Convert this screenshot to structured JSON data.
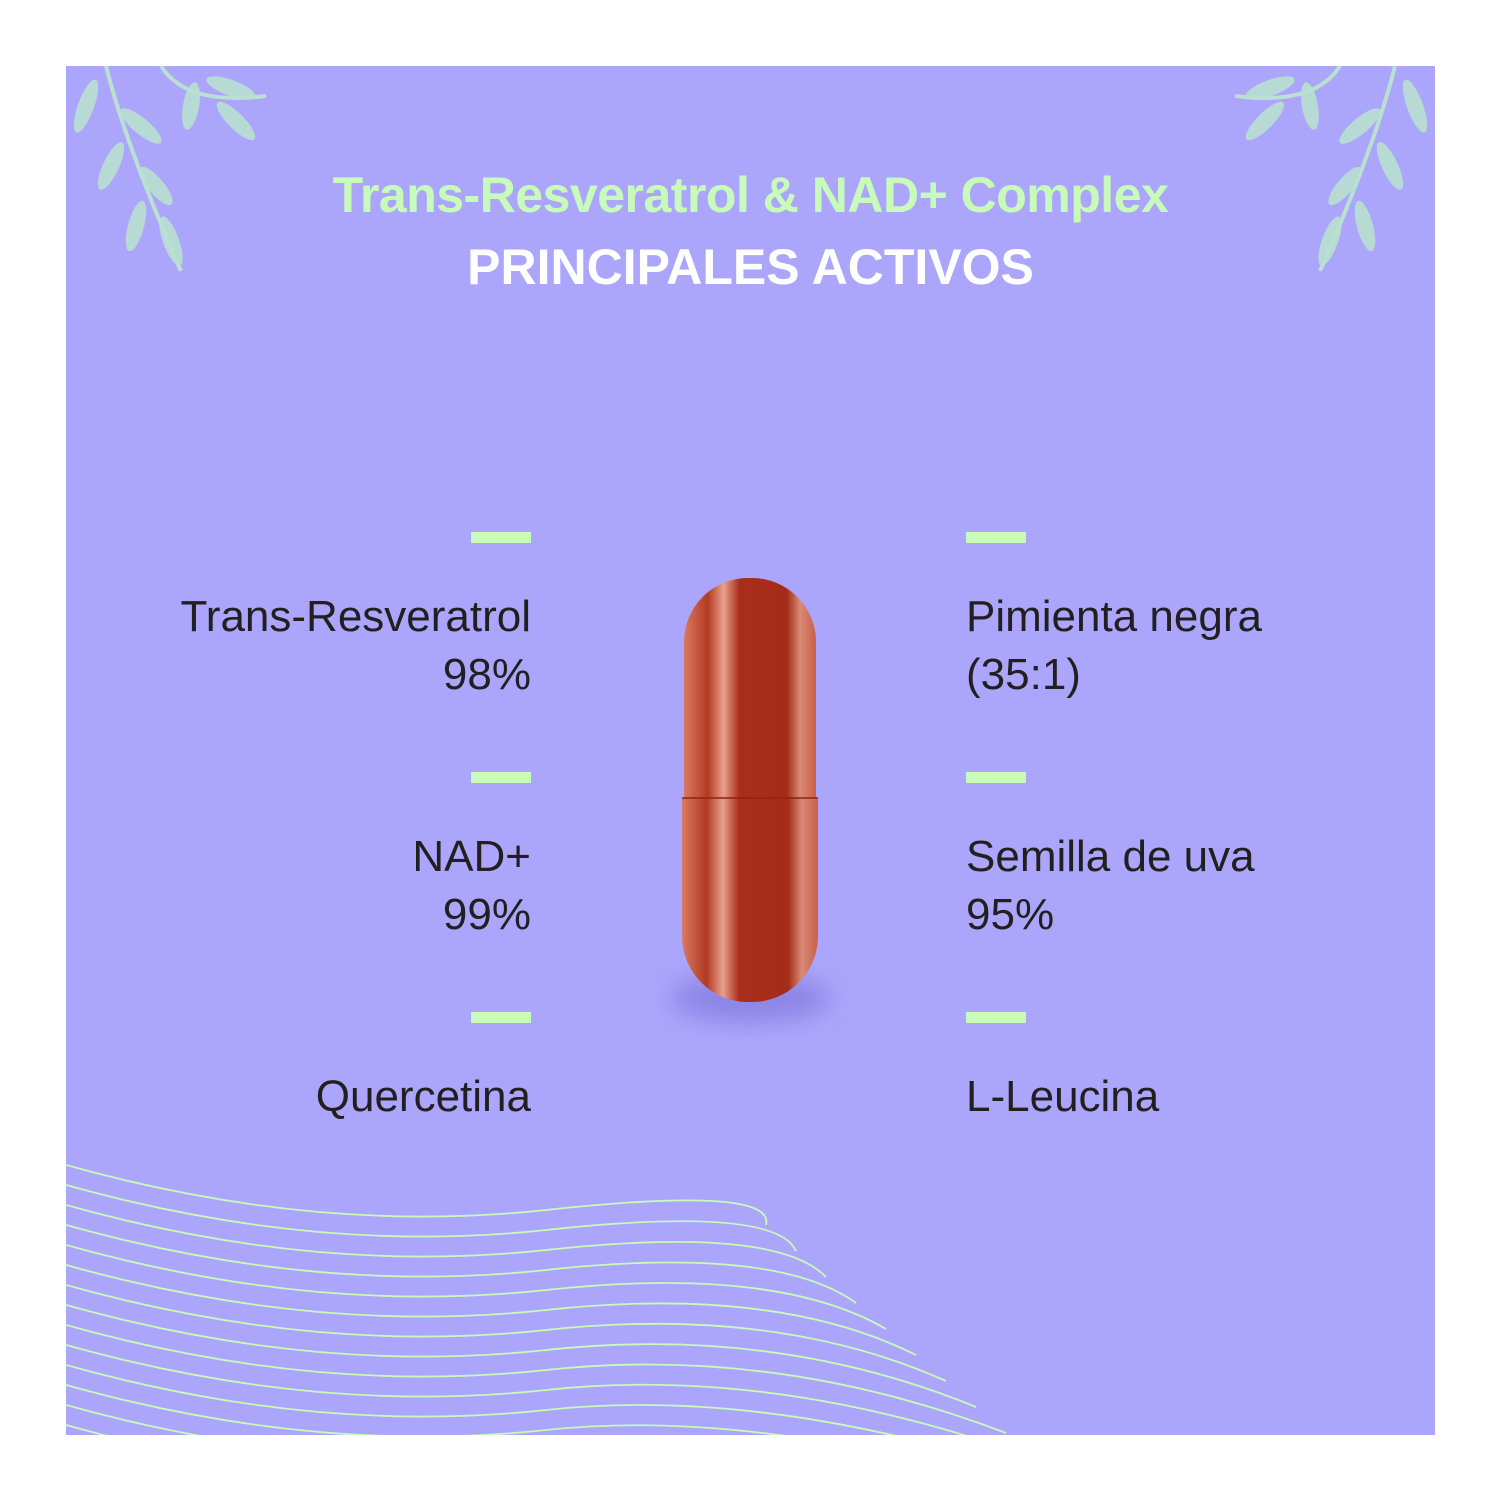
{
  "header": {
    "title": "Trans-Resveratrol & NAD+ Complex",
    "subtitle": "PRINCIPALES ACTIVOS"
  },
  "ingredients_left": [
    {
      "name": "Trans-Resveratrol",
      "detail": "98%"
    },
    {
      "name": "NAD+",
      "detail": "99%"
    },
    {
      "name": "Quercetina",
      "detail": ""
    }
  ],
  "ingredients_right": [
    {
      "name": "Pimienta negra",
      "detail": "(35:1)"
    },
    {
      "name": "Semilla de uva",
      "detail": "95%"
    },
    {
      "name": "L-Leucina",
      "detail": ""
    }
  ],
  "colors": {
    "background": "#aba6fb",
    "accent_green": "#c8fbb9",
    "text_dark": "#231f20",
    "capsule": "#a8321e"
  },
  "icons": [
    "leaf-branch-decoration",
    "capsule-image",
    "wave-lines-decoration"
  ]
}
